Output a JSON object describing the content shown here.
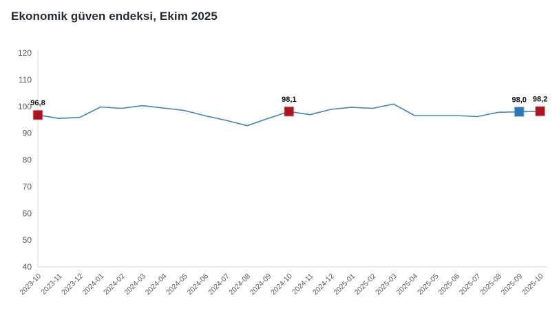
{
  "header": {
    "title": "Ekonomik güven endeksi, Ekim 2025"
  },
  "chart_data": {
    "type": "line",
    "title": "Ekonomik güven endeksi, Ekim 2025",
    "xlabel": "",
    "ylabel": "",
    "x": [
      "2023-10",
      "2023-11",
      "2023-12",
      "2024-01",
      "2024-02",
      "2024-03",
      "2024-04",
      "2024-05",
      "2024-06",
      "2024-07",
      "2024-08",
      "2024-09",
      "2024-10",
      "2024-11",
      "2024-12",
      "2025-01",
      "2025-02",
      "2025-03",
      "2025-04",
      "2025-05",
      "2025-06",
      "2025-07",
      "2025-08",
      "2025-09",
      "2025-10"
    ],
    "values": [
      96.8,
      95.5,
      95.9,
      99.8,
      99.3,
      100.3,
      99.4,
      98.5,
      96.5,
      94.8,
      92.8,
      95.5,
      98.1,
      96.9,
      98.9,
      99.7,
      99.3,
      100.9,
      96.6,
      96.6,
      96.6,
      96.2,
      97.8,
      98.0,
      98.2
    ],
    "ylim": [
      40,
      120
    ],
    "ytick_step": 10,
    "yticks": [
      40,
      50,
      60,
      70,
      80,
      90,
      100,
      110,
      120
    ],
    "grid": false,
    "legend": "none",
    "line_color": "#4381bb",
    "axis_line_color": "#d6d6d6",
    "tick_label_color": "#595959",
    "marked_points": [
      {
        "x": "2023-10",
        "index": 0,
        "label": "96,8",
        "color": "#a8161f"
      },
      {
        "x": "2024-10",
        "index": 12,
        "label": "98,1",
        "color": "#a8161f"
      },
      {
        "x": "2025-09",
        "index": 23,
        "label": "98,0",
        "color": "#2e75b6"
      },
      {
        "x": "2025-10",
        "index": 24,
        "label": "98,2",
        "color": "#a8161f"
      }
    ]
  }
}
